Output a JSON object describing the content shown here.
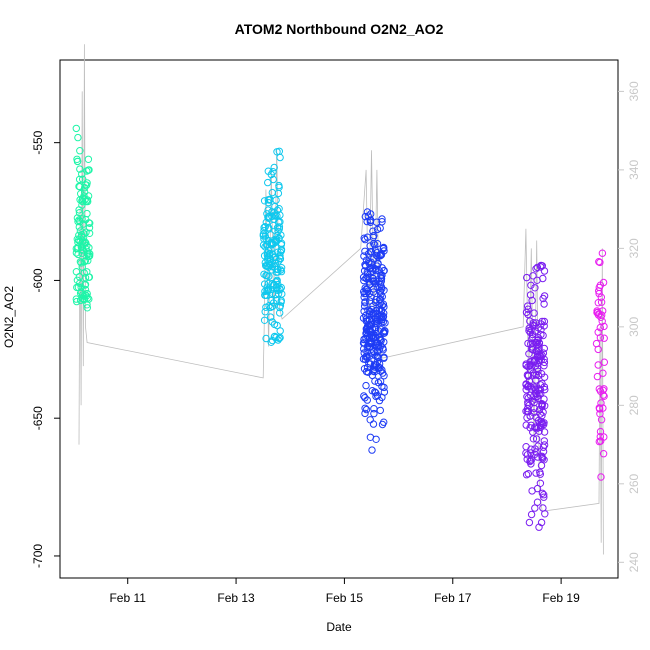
{
  "chart_data": {
    "type": "scatter",
    "title": "ATOM2 Northbound O2N2_AO2",
    "xlabel": "Date",
    "ylabel": "O2N2_AO2",
    "x_ticks": [
      "Feb 11",
      "Feb 13",
      "Feb 15",
      "Feb 17",
      "Feb 19"
    ],
    "x_tick_values": [
      11.0,
      13.0,
      15.0,
      17.0,
      19.0
    ],
    "xlim": [
      9.75,
      20.05
    ],
    "ylim": [
      -708,
      -520
    ],
    "y_ticks": [
      -550,
      -600,
      -650,
      -700
    ],
    "y2_ticks": [
      240,
      260,
      280,
      300,
      320,
      340,
      360
    ],
    "y2lim": [
      236,
      368
    ],
    "grid": false,
    "secondary_series_color": "#bdbdbd",
    "clusters": [
      {
        "x_start": 10.05,
        "x_end": 10.3,
        "color": "#1EF5A8",
        "y_center": -583,
        "y_min": -610,
        "y_max": -520,
        "n": 120
      },
      {
        "x_start": 13.5,
        "x_end": 13.85,
        "color": "#0FC8EE",
        "y_center": -592,
        "y_min": -623,
        "y_max": -553,
        "n": 180
      },
      {
        "x_start": 15.35,
        "x_end": 15.75,
        "color": "#1E3CF5",
        "y_center": -615,
        "y_min": -662,
        "y_max": -575,
        "n": 300
      },
      {
        "x_start": 18.35,
        "x_end": 18.7,
        "color": "#7A1EF0",
        "y_center": -640,
        "y_min": -701,
        "y_max": -594,
        "n": 220
      },
      {
        "x_start": 19.65,
        "x_end": 19.8,
        "color": "#E81EF0",
        "y_center": -628,
        "y_min": -688,
        "y_max": -586,
        "n": 50
      }
    ],
    "secondary_trace": [
      {
        "x": 10.1,
        "y": 270
      },
      {
        "x": 10.12,
        "y": 330
      },
      {
        "x": 10.14,
        "y": 280
      },
      {
        "x": 10.16,
        "y": 360
      },
      {
        "x": 10.18,
        "y": 290
      },
      {
        "x": 10.2,
        "y": 372
      },
      {
        "x": 10.22,
        "y": 300
      },
      {
        "x": 10.25,
        "y": 296
      },
      {
        "x": 13.5,
        "y": 287
      },
      {
        "x": 13.52,
        "y": 300
      },
      {
        "x": 13.55,
        "y": 335
      },
      {
        "x": 13.6,
        "y": 295
      },
      {
        "x": 13.65,
        "y": 340
      },
      {
        "x": 13.7,
        "y": 300
      },
      {
        "x": 13.75,
        "y": 345
      },
      {
        "x": 13.8,
        "y": 305
      },
      {
        "x": 13.85,
        "y": 302
      },
      {
        "x": 15.3,
        "y": 320
      },
      {
        "x": 15.4,
        "y": 340
      },
      {
        "x": 15.45,
        "y": 300
      },
      {
        "x": 15.5,
        "y": 345
      },
      {
        "x": 15.55,
        "y": 300
      },
      {
        "x": 15.6,
        "y": 340
      },
      {
        "x": 15.65,
        "y": 295
      },
      {
        "x": 15.7,
        "y": 292
      },
      {
        "x": 18.3,
        "y": 300
      },
      {
        "x": 18.35,
        "y": 325
      },
      {
        "x": 18.4,
        "y": 285
      },
      {
        "x": 18.45,
        "y": 320
      },
      {
        "x": 18.5,
        "y": 270
      },
      {
        "x": 18.55,
        "y": 322
      },
      {
        "x": 18.6,
        "y": 258
      },
      {
        "x": 18.65,
        "y": 253
      },
      {
        "x": 19.7,
        "y": 255
      },
      {
        "x": 19.72,
        "y": 300
      },
      {
        "x": 19.74,
        "y": 245
      },
      {
        "x": 19.76,
        "y": 320
      },
      {
        "x": 19.78,
        "y": 242
      }
    ]
  }
}
